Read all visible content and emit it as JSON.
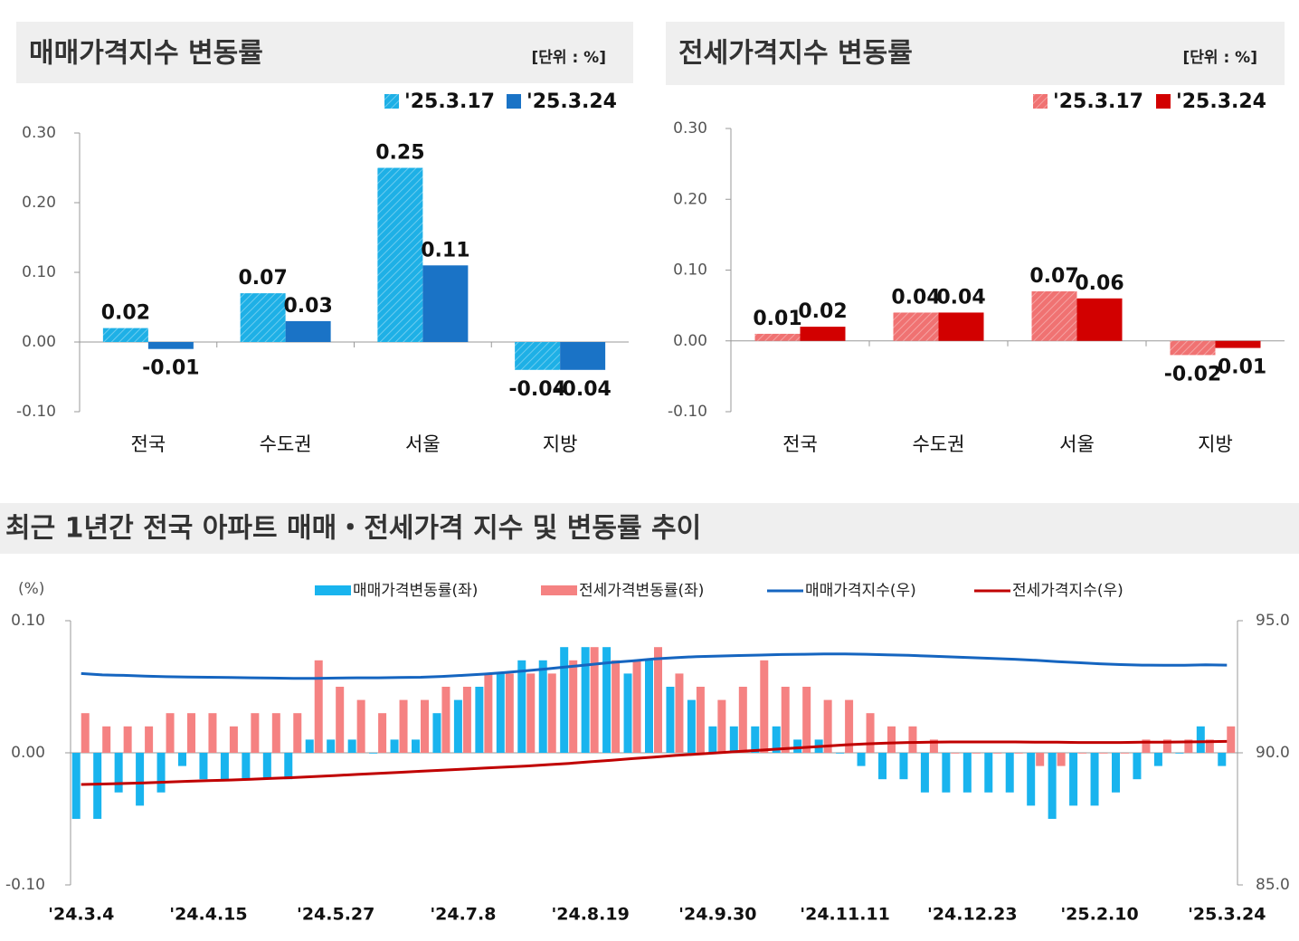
{
  "chart_data": [
    {
      "type": "bar",
      "title": "매매가격지수 변동률",
      "unit": "[단위 : %]",
      "categories": [
        "전국",
        "수도권",
        "서울",
        "지방"
      ],
      "series": [
        {
          "name": "'25.3.17",
          "color": "#1eb0e6",
          "hatched": true,
          "values": [
            0.02,
            0.07,
            0.25,
            -0.04
          ]
        },
        {
          "name": "'25.3.24",
          "color": "#1a73c6",
          "hatched": false,
          "values": [
            -0.01,
            0.03,
            0.11,
            -0.04
          ]
        }
      ],
      "ylim": [
        -0.1,
        0.3
      ],
      "yticks": [
        {
          "value": -0.1,
          "label": "-0.10"
        },
        {
          "value": 0,
          "label": "0.00"
        },
        {
          "value": 0.1,
          "label": "0.10"
        },
        {
          "value": 0.2,
          "label": "0.20"
        },
        {
          "value": 0.3,
          "label": "0.30"
        }
      ]
    },
    {
      "type": "bar",
      "title": "전세가격지수 변동률",
      "unit": "[단위 : %]",
      "categories": [
        "전국",
        "수도권",
        "서울",
        "지방"
      ],
      "series": [
        {
          "name": "'25.3.17",
          "color": "#f07272",
          "hatched": true,
          "values": [
            0.01,
            0.04,
            0.07,
            -0.02
          ]
        },
        {
          "name": "'25.3.24",
          "color": "#d20000",
          "hatched": false,
          "values": [
            0.02,
            0.04,
            0.06,
            -0.01
          ]
        }
      ],
      "ylim": [
        -0.1,
        0.3
      ],
      "yticks": [
        {
          "value": -0.1,
          "label": "-0.10"
        },
        {
          "value": 0,
          "label": "0.00"
        },
        {
          "value": 0.1,
          "label": "0.10"
        },
        {
          "value": 0.2,
          "label": "0.20"
        },
        {
          "value": 0.3,
          "label": "0.30"
        }
      ]
    },
    {
      "type": "combo",
      "title": "최근 1년간 전국 아파트 매매・전세가격 지수 및 변동률 추이",
      "ylabel": "(%)",
      "categories": [
        "'24.3.4",
        null,
        null,
        null,
        null,
        null,
        "'24.4.15",
        null,
        null,
        null,
        null,
        null,
        "'24.5.27",
        null,
        null,
        null,
        null,
        null,
        "'24.7.8",
        null,
        null,
        null,
        null,
        null,
        "'24.8.19",
        null,
        null,
        null,
        null,
        null,
        "'24.9.30",
        null,
        null,
        null,
        null,
        null,
        "'24.11.11",
        null,
        null,
        null,
        null,
        null,
        "'24.12.23",
        null,
        null,
        null,
        null,
        null,
        "'25.2.10",
        null,
        null,
        null,
        null,
        null,
        "'25.3.24"
      ],
      "series": [
        {
          "name": "매매가격변동률(좌)",
          "kind": "bar",
          "color": "#19b4ee",
          "values": [
            -0.05,
            -0.05,
            -0.03,
            -0.04,
            -0.03,
            -0.01,
            -0.02,
            -0.02,
            -0.02,
            -0.02,
            -0.02,
            0.01,
            0.01,
            0.01,
            0.0,
            0.01,
            0.01,
            0.03,
            0.04,
            0.05,
            0.06,
            0.07,
            0.07,
            0.08,
            0.08,
            0.08,
            0.06,
            0.07,
            0.05,
            0.04,
            0.02,
            0.02,
            0.02,
            0.02,
            0.01,
            0.01,
            0.0,
            -0.01,
            -0.02,
            -0.02,
            -0.03,
            -0.03,
            -0.03,
            -0.03,
            -0.03,
            -0.04,
            -0.05,
            -0.04,
            -0.04,
            -0.03,
            -0.02,
            -0.01,
            0.0,
            0.02,
            -0.01
          ]
        },
        {
          "name": "전세가격변동률(좌)",
          "kind": "bar",
          "color": "#f58282",
          "values": [
            0.03,
            0.02,
            0.02,
            0.02,
            0.03,
            0.03,
            0.03,
            0.02,
            0.03,
            0.03,
            0.03,
            0.07,
            0.05,
            0.04,
            0.03,
            0.04,
            0.04,
            0.05,
            0.05,
            0.06,
            0.06,
            0.06,
            0.06,
            0.07,
            0.08,
            0.07,
            0.07,
            0.08,
            0.06,
            0.05,
            0.04,
            0.05,
            0.07,
            0.05,
            0.05,
            0.04,
            0.04,
            0.03,
            0.02,
            0.02,
            0.01,
            0.0,
            0.0,
            0.0,
            0.0,
            -0.01,
            -0.01,
            0.0,
            0.0,
            0.0,
            0.01,
            0.01,
            0.01,
            0.01,
            0.02
          ]
        },
        {
          "name": "매매가격지수(우)",
          "kind": "line",
          "axis": "y2",
          "color": "#1565c0",
          "values": [
            93.0,
            92.95,
            92.93,
            92.9,
            92.88,
            92.87,
            92.86,
            92.85,
            92.84,
            92.83,
            92.82,
            92.82,
            92.83,
            92.84,
            92.84,
            92.85,
            92.86,
            92.89,
            92.93,
            92.98,
            93.04,
            93.11,
            93.18,
            93.26,
            93.34,
            93.42,
            93.48,
            93.55,
            93.6,
            93.64,
            93.66,
            93.68,
            93.7,
            93.72,
            93.73,
            93.74,
            93.74,
            93.73,
            93.71,
            93.69,
            93.66,
            93.63,
            93.6,
            93.57,
            93.54,
            93.5,
            93.45,
            93.41,
            93.37,
            93.34,
            93.32,
            93.31,
            93.31,
            93.33,
            93.32
          ]
        },
        {
          "name": "전세가격지수(우)",
          "kind": "line",
          "axis": "y2",
          "color": "#c00000",
          "values": [
            88.8,
            88.82,
            88.84,
            88.86,
            88.89,
            88.92,
            88.95,
            88.97,
            89.0,
            89.03,
            89.06,
            89.1,
            89.14,
            89.18,
            89.22,
            89.26,
            89.3,
            89.34,
            89.38,
            89.42,
            89.46,
            89.5,
            89.55,
            89.6,
            89.66,
            89.72,
            89.78,
            89.84,
            89.9,
            89.95,
            90.0,
            90.05,
            90.1,
            90.15,
            90.2,
            90.25,
            90.3,
            90.34,
            90.37,
            90.39,
            90.4,
            90.41,
            90.41,
            90.41,
            90.41,
            90.4,
            90.4,
            90.39,
            90.39,
            90.39,
            90.4,
            90.4,
            90.41,
            90.42,
            90.43
          ]
        }
      ],
      "ylim": [
        -0.1,
        0.1
      ],
      "yticks": [
        {
          "value": -0.1,
          "label": "-0.10"
        },
        {
          "value": 0,
          "label": "0.00"
        },
        {
          "value": 0.1,
          "label": "0.10"
        }
      ],
      "y2lim": [
        85,
        95
      ],
      "y2ticks": [
        {
          "value": 85,
          "label": "85.0"
        },
        {
          "value": 90,
          "label": "90.0"
        },
        {
          "value": 95,
          "label": "95.0"
        }
      ]
    }
  ]
}
